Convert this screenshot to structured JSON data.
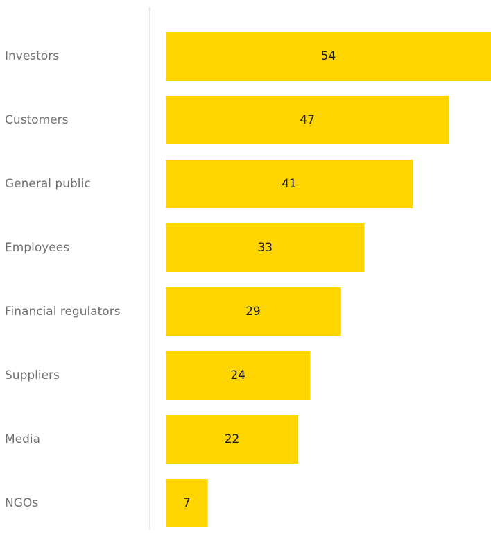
{
  "chart_data": {
    "type": "bar",
    "orientation": "horizontal",
    "categories": [
      "Investors",
      "Customers",
      "General public",
      "Employees",
      "Financial regulators",
      "Suppliers",
      "Media",
      "NGOs"
    ],
    "values": [
      54,
      47,
      41,
      33,
      29,
      24,
      22,
      7
    ],
    "data_labels": [
      "54",
      "47",
      "41",
      "33",
      "29",
      "24",
      "22",
      "7"
    ],
    "xlim": [
      0,
      54
    ],
    "grid": false,
    "legend": "none",
    "bar_color": "#FFD500",
    "axis_color": "#cfcfcf",
    "category_label_color": "#707070",
    "value_label_color": "#1a1a1a"
  }
}
